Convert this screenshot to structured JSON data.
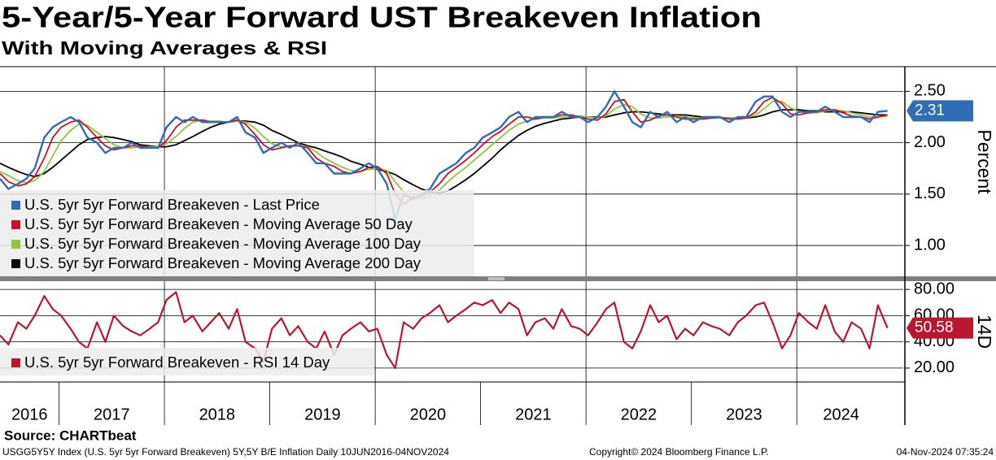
{
  "title": "5-Year/5-Year Forward UST Breakeven Inflation",
  "subtitle": "With Moving Averages & RSI",
  "source": "Source: CHARTbeat",
  "footer": {
    "left": "USGG5Y5Y Index (U.S. 5yr 5yr Forward Breakeven) 5Y,5Y B/E Inflation  Daily 10JUN2016-04NOV2024",
    "center": "Copyright© 2024 Bloomberg Finance L.P.",
    "right": "04-Nov-2024 07:35:24"
  },
  "chart_data": [
    {
      "type": "line",
      "ylabel": "Percent",
      "grid": true,
      "legend": "lower left",
      "xlim": [
        2016.44,
        2025.01
      ],
      "xgrid": [
        2018,
        2020,
        2022,
        2024
      ],
      "ylim": [
        0.7,
        2.74
      ],
      "yticks": [
        {
          "value": 1.0,
          "label": "1.00"
        },
        {
          "value": 1.5,
          "label": "1.50"
        },
        {
          "value": 2.0,
          "label": "2.00"
        },
        {
          "value": 2.5,
          "label": "2.50"
        }
      ],
      "x": [
        2016.44,
        2016.52,
        2016.61,
        2016.69,
        2016.77,
        2016.86,
        2016.94,
        2017.02,
        2017.11,
        2017.19,
        2017.27,
        2017.36,
        2017.44,
        2017.52,
        2017.61,
        2017.69,
        2017.77,
        2017.86,
        2017.94,
        2018.02,
        2018.11,
        2018.19,
        2018.27,
        2018.36,
        2018.44,
        2018.52,
        2018.61,
        2018.69,
        2018.77,
        2018.86,
        2018.94,
        2019.02,
        2019.11,
        2019.19,
        2019.27,
        2019.36,
        2019.44,
        2019.52,
        2019.61,
        2019.69,
        2019.77,
        2019.86,
        2019.94,
        2020.02,
        2020.11,
        2020.19,
        2020.27,
        2020.36,
        2020.44,
        2020.52,
        2020.61,
        2020.69,
        2020.77,
        2020.86,
        2020.94,
        2021.02,
        2021.11,
        2021.19,
        2021.27,
        2021.36,
        2021.44,
        2021.52,
        2021.61,
        2021.69,
        2021.77,
        2021.86,
        2021.94,
        2022.02,
        2022.11,
        2022.19,
        2022.27,
        2022.36,
        2022.44,
        2022.52,
        2022.61,
        2022.69,
        2022.77,
        2022.86,
        2022.94,
        2023.02,
        2023.11,
        2023.19,
        2023.27,
        2023.36,
        2023.44,
        2023.52,
        2023.61,
        2023.69,
        2023.77,
        2023.86,
        2023.94,
        2024.02,
        2024.11,
        2024.19,
        2024.27,
        2024.36,
        2024.44,
        2024.52,
        2024.61,
        2024.69,
        2024.77,
        2024.86
      ],
      "series": [
        {
          "name": "U.S. 5yr 5yr Forward Breakeven - Last Price",
          "color": "#2f6db5",
          "width": 2.4,
          "values": [
            1.65,
            1.55,
            1.6,
            1.65,
            1.75,
            2.05,
            2.15,
            2.2,
            2.25,
            2.2,
            2.05,
            2.0,
            1.9,
            1.95,
            1.95,
            2.0,
            1.95,
            1.95,
            1.95,
            2.15,
            2.25,
            2.2,
            2.25,
            2.2,
            2.2,
            2.2,
            2.2,
            2.25,
            2.1,
            2.05,
            1.9,
            1.95,
            2.0,
            1.95,
            2.0,
            1.9,
            1.8,
            1.8,
            1.7,
            1.7,
            1.7,
            1.75,
            1.8,
            1.75,
            1.6,
            1.25,
            1.5,
            1.45,
            1.5,
            1.55,
            1.7,
            1.75,
            1.8,
            1.9,
            1.95,
            2.05,
            2.1,
            2.15,
            2.25,
            2.3,
            2.2,
            2.25,
            2.25,
            2.25,
            2.3,
            2.25,
            2.25,
            2.2,
            2.25,
            2.35,
            2.5,
            2.35,
            2.2,
            2.15,
            2.3,
            2.25,
            2.3,
            2.2,
            2.25,
            2.2,
            2.25,
            2.25,
            2.25,
            2.2,
            2.25,
            2.25,
            2.4,
            2.45,
            2.45,
            2.3,
            2.25,
            2.3,
            2.3,
            2.3,
            2.35,
            2.3,
            2.25,
            2.25,
            2.25,
            2.2,
            2.3,
            2.31
          ]
        },
        {
          "name": "U.S. 5yr 5yr Forward Breakeven - Moving Average 50 Day",
          "color": "#c8102e",
          "width": 1.8,
          "values": [
            1.7,
            1.62,
            1.58,
            1.6,
            1.67,
            1.85,
            2.05,
            2.15,
            2.2,
            2.22,
            2.15,
            2.05,
            1.97,
            1.93,
            1.95,
            1.97,
            1.97,
            1.95,
            1.95,
            2.02,
            2.15,
            2.22,
            2.22,
            2.22,
            2.2,
            2.2,
            2.2,
            2.22,
            2.18,
            2.08,
            1.98,
            1.93,
            1.95,
            1.97,
            1.97,
            1.95,
            1.85,
            1.8,
            1.77,
            1.72,
            1.7,
            1.72,
            1.76,
            1.77,
            1.7,
            1.5,
            1.4,
            1.47,
            1.48,
            1.52,
            1.6,
            1.7,
            1.76,
            1.83,
            1.9,
            1.98,
            2.06,
            2.11,
            2.18,
            2.25,
            2.25,
            2.23,
            2.25,
            2.25,
            2.27,
            2.27,
            2.25,
            2.23,
            2.22,
            2.28,
            2.4,
            2.42,
            2.3,
            2.2,
            2.22,
            2.26,
            2.27,
            2.25,
            2.23,
            2.23,
            2.23,
            2.24,
            2.25,
            2.23,
            2.23,
            2.24,
            2.3,
            2.4,
            2.44,
            2.38,
            2.28,
            2.27,
            2.29,
            2.3,
            2.32,
            2.32,
            2.29,
            2.26,
            2.25,
            2.23,
            2.25,
            2.27
          ]
        },
        {
          "name": "U.S. 5yr 5yr Forward Breakeven - Moving Average 100 Day",
          "color": "#8dc63f",
          "width": 1.8,
          "values": [
            1.72,
            1.68,
            1.63,
            1.61,
            1.63,
            1.72,
            1.87,
            2.02,
            2.12,
            2.18,
            2.17,
            2.1,
            2.04,
            1.98,
            1.95,
            1.95,
            1.96,
            1.96,
            1.96,
            1.99,
            2.06,
            2.14,
            2.2,
            2.22,
            2.21,
            2.21,
            2.2,
            2.21,
            2.2,
            2.14,
            2.06,
            1.99,
            1.96,
            1.96,
            1.97,
            1.96,
            1.91,
            1.85,
            1.8,
            1.76,
            1.73,
            1.72,
            1.74,
            1.75,
            1.73,
            1.62,
            1.52,
            1.48,
            1.45,
            1.48,
            1.54,
            1.62,
            1.69,
            1.76,
            1.83,
            1.9,
            1.98,
            2.05,
            2.12,
            2.18,
            2.21,
            2.23,
            2.24,
            2.24,
            2.25,
            2.26,
            2.26,
            2.25,
            2.24,
            2.26,
            2.33,
            2.37,
            2.35,
            2.28,
            2.24,
            2.24,
            2.25,
            2.26,
            2.25,
            2.24,
            2.24,
            2.24,
            2.24,
            2.24,
            2.24,
            2.24,
            2.27,
            2.33,
            2.4,
            2.4,
            2.34,
            2.3,
            2.29,
            2.29,
            2.31,
            2.32,
            2.31,
            2.29,
            2.27,
            2.25,
            2.25,
            2.26
          ]
        },
        {
          "name": "U.S. 5yr 5yr Forward Breakeven - Moving Average 200 Day",
          "color": "#000000",
          "width": 1.8,
          "values": [
            1.8,
            1.76,
            1.72,
            1.69,
            1.67,
            1.7,
            1.76,
            1.83,
            1.91,
            1.98,
            2.03,
            2.05,
            2.06,
            2.05,
            2.03,
            2.01,
            1.98,
            1.97,
            1.96,
            1.96,
            1.98,
            2.02,
            2.06,
            2.11,
            2.15,
            2.18,
            2.2,
            2.21,
            2.21,
            2.2,
            2.17,
            2.12,
            2.08,
            2.04,
            2.0,
            1.97,
            1.95,
            1.92,
            1.89,
            1.86,
            1.82,
            1.79,
            1.76,
            1.74,
            1.72,
            1.69,
            1.64,
            1.59,
            1.55,
            1.52,
            1.51,
            1.53,
            1.58,
            1.64,
            1.7,
            1.77,
            1.85,
            1.93,
            2.0,
            2.07,
            2.12,
            2.16,
            2.19,
            2.21,
            2.23,
            2.24,
            2.25,
            2.25,
            2.25,
            2.25,
            2.27,
            2.29,
            2.3,
            2.3,
            2.29,
            2.28,
            2.27,
            2.27,
            2.27,
            2.26,
            2.25,
            2.24,
            2.24,
            2.24,
            2.24,
            2.24,
            2.25,
            2.27,
            2.3,
            2.32,
            2.32,
            2.32,
            2.31,
            2.31,
            2.3,
            2.3,
            2.3,
            2.3,
            2.29,
            2.28,
            2.27,
            2.27
          ]
        }
      ]
    },
    {
      "type": "line",
      "ylabel": "14D",
      "grid": true,
      "legend": "lower left",
      "xlim": [
        2016.44,
        2025.01
      ],
      "xgrid": [
        2018,
        2020,
        2022,
        2024
      ],
      "xticks": [
        2017,
        2018,
        2019,
        2020,
        2021,
        2022,
        2023,
        2024
      ],
      "xlabels": [
        {
          "value": 2016.72,
          "label": "2016"
        },
        {
          "value": 2017.5,
          "label": "2017"
        },
        {
          "value": 2018.5,
          "label": "2018"
        },
        {
          "value": 2019.5,
          "label": "2019"
        },
        {
          "value": 2020.5,
          "label": "2020"
        },
        {
          "value": 2021.5,
          "label": "2021"
        },
        {
          "value": 2022.5,
          "label": "2022"
        },
        {
          "value": 2023.5,
          "label": "2023"
        },
        {
          "value": 2024.42,
          "label": "2024"
        }
      ],
      "ylim": [
        9.4,
        86.3
      ],
      "yticks": [
        {
          "value": 20,
          "label": "20.00"
        },
        {
          "value": 40,
          "label": "40.00"
        },
        {
          "value": 60,
          "label": "60.00"
        },
        {
          "value": 80,
          "label": "80.00"
        }
      ],
      "x": [
        2016.44,
        2016.52,
        2016.61,
        2016.69,
        2016.77,
        2016.86,
        2016.94,
        2017.02,
        2017.11,
        2017.19,
        2017.27,
        2017.36,
        2017.44,
        2017.52,
        2017.61,
        2017.69,
        2017.77,
        2017.86,
        2017.94,
        2018.02,
        2018.11,
        2018.19,
        2018.27,
        2018.36,
        2018.44,
        2018.52,
        2018.61,
        2018.69,
        2018.77,
        2018.86,
        2018.94,
        2019.02,
        2019.11,
        2019.19,
        2019.27,
        2019.36,
        2019.44,
        2019.52,
        2019.61,
        2019.69,
        2019.77,
        2019.86,
        2019.94,
        2020.02,
        2020.11,
        2020.19,
        2020.27,
        2020.36,
        2020.44,
        2020.52,
        2020.61,
        2020.69,
        2020.77,
        2020.86,
        2020.94,
        2021.02,
        2021.11,
        2021.19,
        2021.27,
        2021.36,
        2021.44,
        2021.52,
        2021.61,
        2021.69,
        2021.77,
        2021.86,
        2021.94,
        2022.02,
        2022.11,
        2022.19,
        2022.27,
        2022.36,
        2022.44,
        2022.52,
        2022.61,
        2022.69,
        2022.77,
        2022.86,
        2022.94,
        2023.02,
        2023.11,
        2023.19,
        2023.27,
        2023.36,
        2023.44,
        2023.52,
        2023.61,
        2023.69,
        2023.77,
        2023.86,
        2023.94,
        2024.02,
        2024.11,
        2024.19,
        2024.27,
        2024.36,
        2024.44,
        2024.52,
        2024.61,
        2024.69,
        2024.77,
        2024.86
      ],
      "series": [
        {
          "name": "U.S. 5yr 5yr Forward Breakeven - RSI 14 Day",
          "color": "#b8172f",
          "width": 2.2,
          "values": [
            45,
            38,
            55,
            50,
            60,
            75,
            65,
            60,
            50,
            40,
            35,
            55,
            40,
            60,
            52,
            48,
            45,
            50,
            55,
            72,
            78,
            55,
            60,
            48,
            55,
            62,
            50,
            65,
            40,
            35,
            25,
            50,
            58,
            45,
            52,
            40,
            35,
            48,
            30,
            45,
            50,
            55,
            48,
            50,
            30,
            20,
            55,
            50,
            58,
            62,
            68,
            55,
            60,
            65,
            70,
            68,
            72,
            62,
            70,
            65,
            45,
            55,
            58,
            50,
            65,
            52,
            50,
            45,
            55,
            65,
            70,
            40,
            35,
            48,
            68,
            55,
            60,
            42,
            50,
            45,
            55,
            52,
            50,
            45,
            55,
            60,
            68,
            70,
            55,
            35,
            45,
            62,
            55,
            50,
            68,
            48,
            40,
            55,
            50,
            35,
            68,
            50.58
          ]
        }
      ]
    }
  ]
}
